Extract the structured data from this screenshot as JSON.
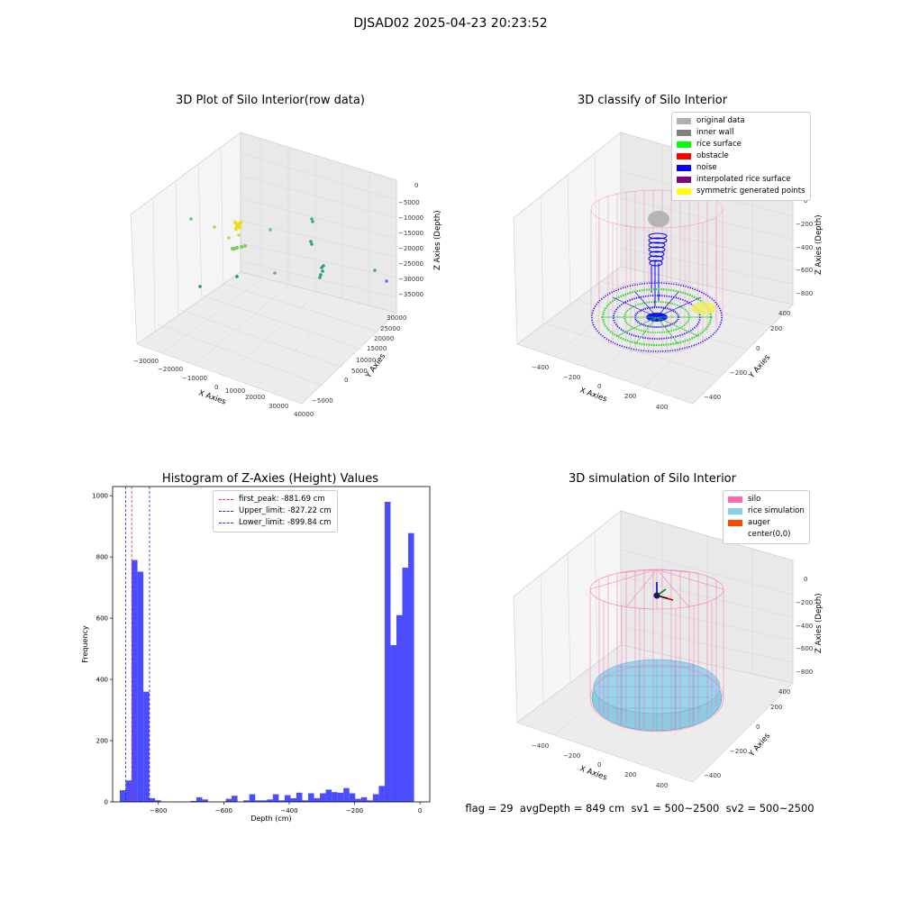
{
  "figure": {
    "title": "DJSAD02 2025-04-23 20:23:52",
    "status_line": "flag = 29  avgDepth = 849 cm  sv1 = 500~2500  sv2 = 500~2500"
  },
  "colors": {
    "hist_bar": "#4b4bff",
    "first_peak": "#e83030",
    "limits": "#2a2acc",
    "silo": "#ff69b4",
    "rice": "#87ceeb",
    "auger": "#ff4500",
    "noise": "#0000ff",
    "rice_surface": "#00ff00",
    "inner_wall": "#808080",
    "original": "#b0b0b0",
    "symmetric": "#ffff00"
  },
  "panels": {
    "raw": {
      "title": "3D Plot of Silo Interior(row data)",
      "xlabel": "X Axies",
      "ylabel": "Y Axies",
      "zlabel": "Z Axies (Depth)",
      "xticks": [
        "−30000",
        "−20000",
        "−10000",
        "0",
        "10000",
        "20000",
        "30000",
        "40000"
      ],
      "yticks": [
        "−5000",
        "0",
        "5000",
        "10000",
        "15000",
        "20000",
        "25000",
        "30000"
      ],
      "zticks": [
        "0",
        "−5000",
        "−10000",
        "−15000",
        "−20000",
        "−25000",
        "−30000",
        "−35000"
      ]
    },
    "classify": {
      "title": "3D classify of Silo Interior",
      "xlabel": "X Axies",
      "ylabel": "Y Axies",
      "zlabel": "Z Axies (Depth)",
      "xticks": [
        "−400",
        "−200",
        "0",
        "200",
        "400"
      ],
      "yticks": [
        "−400",
        "−200",
        "0",
        "200",
        "400"
      ],
      "zticks": [
        "0",
        "−200",
        "−400",
        "−600",
        "−800"
      ],
      "legend": [
        {
          "label": "original data",
          "color": "#b0b0b0"
        },
        {
          "label": "inner wall",
          "color": "#808080"
        },
        {
          "label": "rice surface",
          "color": "#00ff00"
        },
        {
          "label": "obstacle",
          "color": "#ff0000"
        },
        {
          "label": "noise",
          "color": "#0000ff"
        },
        {
          "label": "interpolated rice surface",
          "color": "#800080"
        },
        {
          "label": "symmetric generated points",
          "color": "#ffff00"
        }
      ]
    },
    "simulation": {
      "title": "3D simulation of Silo Interior",
      "xlabel": "X Axies",
      "ylabel": "Y Axies",
      "zlabel": "Z Axies (Depth)",
      "xticks": [
        "−400",
        "−200",
        "0",
        "200",
        "400"
      ],
      "yticks": [
        "−400",
        "−200",
        "0",
        "200",
        "400"
      ],
      "zticks": [
        "0",
        "−200",
        "−400",
        "−600",
        "−800"
      ],
      "legend": [
        {
          "label": "silo",
          "color": "#ff69b4"
        },
        {
          "label": "rice simulation",
          "color": "#87ceeb"
        },
        {
          "label": "auger",
          "color": "#ff4500"
        },
        {
          "label": "center(0,0)",
          "color": ""
        }
      ]
    }
  },
  "chart_data": {
    "type": "bar",
    "title": "Histogram of Z-Axies (Height) Values",
    "xlabel": "Depth (cm)",
    "ylabel": "Frequency",
    "xlim": [
      -940,
      30
    ],
    "ylim": [
      0,
      1030
    ],
    "xticks": [
      -800,
      -600,
      -400,
      -200,
      0
    ],
    "xtick_labels": [
      "−800",
      "−600",
      "−400",
      "−200",
      "0"
    ],
    "yticks": [
      0,
      200,
      400,
      600,
      800,
      1000
    ],
    "bin_width": 18,
    "bin_left_edges": [
      -918,
      -900,
      -882,
      -864,
      -846,
      -828,
      -810,
      -792,
      -774,
      -756,
      -738,
      -720,
      -702,
      -684,
      -666,
      -648,
      -630,
      -612,
      -594,
      -576,
      -558,
      -540,
      -522,
      -504,
      -486,
      -468,
      -450,
      -432,
      -414,
      -396,
      -378,
      -360,
      -342,
      -324,
      -306,
      -288,
      -270,
      -252,
      -234,
      -216,
      -198,
      -180,
      -162,
      -144,
      -126,
      -108,
      -90,
      -72,
      -54,
      -36,
      -18
    ],
    "values": [
      38,
      70,
      790,
      752,
      360,
      12,
      5,
      0,
      0,
      0,
      0,
      0,
      3,
      15,
      8,
      0,
      0,
      0,
      10,
      20,
      0,
      5,
      25,
      5,
      5,
      8,
      25,
      5,
      22,
      12,
      30,
      5,
      28,
      12,
      28,
      40,
      32,
      30,
      45,
      28,
      10,
      15,
      5,
      25,
      52,
      980,
      512,
      610,
      765,
      878,
      0
    ],
    "reference_lines": [
      {
        "name": "first_peak: -881.69 cm",
        "x": -881.69,
        "style": "red dashed"
      },
      {
        "name": "Upper_limit: -827.22 cm",
        "x": -827.22,
        "style": "blue dashed"
      },
      {
        "name": "Lower_limit: -899.84 cm",
        "x": -899.84,
        "style": "blue dashed"
      }
    ],
    "legend_position": "top-center"
  }
}
